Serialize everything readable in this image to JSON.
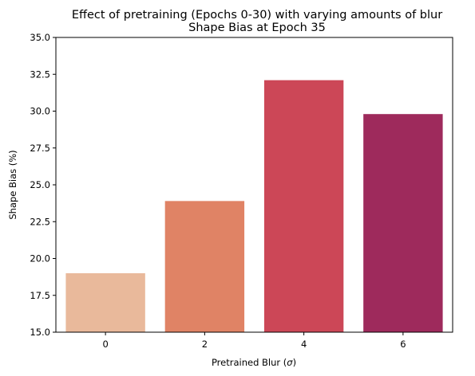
{
  "chart_data": {
    "type": "bar",
    "title": "Effect of pretraining (Epochs 0-30) with varying amounts of blur",
    "subtitle": "Shape Bias at Epoch 35",
    "xlabel_prefix": "Pretrained Blur (",
    "xlabel_symbol": "σ",
    "xlabel_suffix": ")",
    "ylabel": "Shape Bias (%)",
    "categories": [
      "0",
      "2",
      "4",
      "6"
    ],
    "values": [
      19.0,
      23.9,
      32.1,
      29.8
    ],
    "colors": [
      "#e9b99b",
      "#e08365",
      "#cc4757",
      "#9e2a5c"
    ],
    "ylim": [
      15.0,
      35.0
    ],
    "yticks": [
      15.0,
      17.5,
      20.0,
      22.5,
      25.0,
      27.5,
      30.0,
      32.5,
      35.0
    ],
    "grid": false,
    "legend": "none"
  }
}
